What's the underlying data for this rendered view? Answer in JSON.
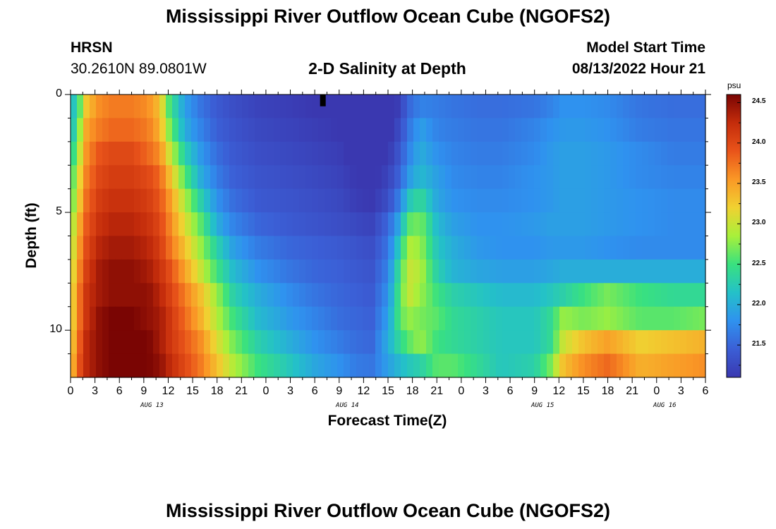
{
  "header": {
    "title_top": "Mississippi River Outflow Ocean Cube (NGOFS2)",
    "station_code": "HRSN",
    "station_coords": "30.2610N  89.0801W",
    "plot_title": "2-D Salinity at Depth",
    "model_start_label": "Model Start Time",
    "model_start_value": "08/13/2022 Hour 21",
    "title_bottom": "Mississippi River Outflow Ocean Cube (NGOFS2)"
  },
  "colors": {
    "colormap": [
      "#3a38b0",
      "#3b5fd6",
      "#2f92ef",
      "#24c1c8",
      "#39e17f",
      "#a8f03a",
      "#f0d131",
      "#fa9826",
      "#e9541a",
      "#c42c0b",
      "#7a0503"
    ],
    "axis": "#000000"
  },
  "chart_data": {
    "type": "heatmap",
    "title": "2-D Salinity at Depth",
    "xlabel": "Forecast Time(Z)",
    "ylabel": "Depth (ft)",
    "x_range_hours": [
      0,
      78
    ],
    "y_range_ft": [
      0,
      12
    ],
    "x_ticks": [
      "0",
      "3",
      "6",
      "9",
      "12",
      "15",
      "18",
      "21",
      "0",
      "3",
      "6",
      "9",
      "12",
      "15",
      "18",
      "21",
      "0",
      "3",
      "6",
      "9",
      "12",
      "15",
      "18",
      "21",
      "0",
      "3",
      "6"
    ],
    "y_ticks": [
      "0",
      "5",
      "10"
    ],
    "y_tick_values": [
      0,
      5,
      10
    ],
    "date_labels": [
      {
        "label": "AUG 13",
        "hour": 10
      },
      {
        "label": "AUG 14",
        "hour": 34
      },
      {
        "label": "AUG 15",
        "hour": 58
      },
      {
        "label": "AUG 16",
        "hour": 73
      }
    ],
    "colorbar": {
      "units": "psu",
      "min": 21.1,
      "max": 24.6,
      "ticks": [
        "21.5",
        "22.0",
        "22.5",
        "23.0",
        "23.5",
        "24.0",
        "24.5"
      ],
      "tick_values": [
        21.5,
        22.0,
        22.5,
        23.0,
        23.5,
        24.0,
        24.5
      ]
    },
    "depth_levels_ft": [
      0.5,
      1.5,
      2.5,
      3.5,
      4.5,
      5.5,
      6.5,
      7.5,
      8.5,
      9.5,
      10.5,
      11.5
    ],
    "time_keyframes_hours": [
      0,
      1,
      2,
      3.5,
      5,
      7.5,
      9.5,
      11,
      12,
      14,
      16,
      18,
      20,
      23,
      27,
      30,
      33,
      35,
      37,
      39,
      40.5,
      41.5,
      43,
      45,
      47,
      50,
      53,
      57,
      59,
      60.5,
      63,
      66,
      70,
      74,
      78
    ],
    "salinity_keyframes_by_depth": [
      [
        22.0,
        22.5,
        23.3,
        23.6,
        23.7,
        23.7,
        23.6,
        23.3,
        22.6,
        21.9,
        21.6,
        21.4,
        21.3,
        21.2,
        21.15,
        21.1,
        21.05,
        20.9,
        20.75,
        20.9,
        21.2,
        21.5,
        21.7,
        21.65,
        21.6,
        21.55,
        21.55,
        21.6,
        21.7,
        21.8,
        21.8,
        21.75,
        21.6,
        21.55,
        21.55
      ],
      [
        22.0,
        22.7,
        23.5,
        23.7,
        23.8,
        23.8,
        23.7,
        23.4,
        22.8,
        22.0,
        21.7,
        21.45,
        21.35,
        21.25,
        21.2,
        21.15,
        21.1,
        21.0,
        20.9,
        21.0,
        21.3,
        21.6,
        21.9,
        21.7,
        21.65,
        21.6,
        21.6,
        21.7,
        21.8,
        21.85,
        21.85,
        21.8,
        21.65,
        21.6,
        21.6
      ],
      [
        22.2,
        22.9,
        23.6,
        23.9,
        24.0,
        24.0,
        23.8,
        23.6,
        23.1,
        22.3,
        21.85,
        21.55,
        21.4,
        21.3,
        21.25,
        21.2,
        21.15,
        21.05,
        21.0,
        21.1,
        21.4,
        21.7,
        22.0,
        21.8,
        21.7,
        21.65,
        21.65,
        21.75,
        21.85,
        21.9,
        21.9,
        21.85,
        21.75,
        21.65,
        21.65
      ],
      [
        22.4,
        23.1,
        23.7,
        24.0,
        24.1,
        24.1,
        24.0,
        23.8,
        23.4,
        22.6,
        22.0,
        21.65,
        21.45,
        21.35,
        21.3,
        21.25,
        21.2,
        21.1,
        21.05,
        21.2,
        21.5,
        21.85,
        22.1,
        21.9,
        21.75,
        21.7,
        21.7,
        21.8,
        21.85,
        21.9,
        21.9,
        21.85,
        21.75,
        21.7,
        21.7
      ],
      [
        22.5,
        23.2,
        23.8,
        24.1,
        24.2,
        24.2,
        24.1,
        23.9,
        23.6,
        22.9,
        22.3,
        21.8,
        21.55,
        21.4,
        21.35,
        21.3,
        21.25,
        21.15,
        21.1,
        21.3,
        21.7,
        22.2,
        22.4,
        21.95,
        21.8,
        21.75,
        21.75,
        21.8,
        21.85,
        21.9,
        21.9,
        21.85,
        21.8,
        21.75,
        21.75
      ],
      [
        22.7,
        23.4,
        23.9,
        24.2,
        24.3,
        24.3,
        24.2,
        24.0,
        23.7,
        23.1,
        22.6,
        22.0,
        21.7,
        21.5,
        21.4,
        21.35,
        21.3,
        21.25,
        21.2,
        21.5,
        22.0,
        22.6,
        22.7,
        22.1,
        21.9,
        21.8,
        21.8,
        21.85,
        21.9,
        21.9,
        21.9,
        21.85,
        21.8,
        21.75,
        21.75
      ],
      [
        22.8,
        23.5,
        24.0,
        24.3,
        24.4,
        24.4,
        24.3,
        24.1,
        23.8,
        23.3,
        22.8,
        22.3,
        21.9,
        21.65,
        21.5,
        21.45,
        21.4,
        21.35,
        21.3,
        21.6,
        22.3,
        22.9,
        22.8,
        22.2,
        22.0,
        21.85,
        21.8,
        21.8,
        21.85,
        21.85,
        21.85,
        21.8,
        21.75,
        21.75,
        21.75
      ],
      [
        22.9,
        23.6,
        24.1,
        24.4,
        24.5,
        24.5,
        24.4,
        24.2,
        24.0,
        23.5,
        23.0,
        22.5,
        22.1,
        21.8,
        21.6,
        21.5,
        21.45,
        21.4,
        21.35,
        21.7,
        22.5,
        23.0,
        22.9,
        22.3,
        22.05,
        21.95,
        21.9,
        21.9,
        21.95,
        22.0,
        22.0,
        22.0,
        22.0,
        22.0,
        22.0
      ],
      [
        23.0,
        23.7,
        24.2,
        24.4,
        24.5,
        24.5,
        24.5,
        24.3,
        24.1,
        23.7,
        23.3,
        22.8,
        22.3,
        22.0,
        21.75,
        21.6,
        21.5,
        21.45,
        21.4,
        21.8,
        22.6,
        23.0,
        22.8,
        22.5,
        22.3,
        22.2,
        22.1,
        22.1,
        22.2,
        22.3,
        22.5,
        22.7,
        22.5,
        22.4,
        22.4
      ],
      [
        23.0,
        23.7,
        24.2,
        24.5,
        24.6,
        24.6,
        24.5,
        24.4,
        24.2,
        23.8,
        23.4,
        22.9,
        22.5,
        22.1,
        21.85,
        21.7,
        21.55,
        21.5,
        21.45,
        21.9,
        22.6,
        22.8,
        22.7,
        22.6,
        22.4,
        22.3,
        22.2,
        22.2,
        22.4,
        22.8,
        22.7,
        22.8,
        22.6,
        22.6,
        22.7
      ],
      [
        23.1,
        23.8,
        24.3,
        24.5,
        24.6,
        24.6,
        24.6,
        24.4,
        24.2,
        23.9,
        23.6,
        23.1,
        22.7,
        22.3,
        22.0,
        21.8,
        21.65,
        21.55,
        21.5,
        22.0,
        22.4,
        22.6,
        22.8,
        22.5,
        22.4,
        22.3,
        22.2,
        22.2,
        22.4,
        23.0,
        23.3,
        23.5,
        23.2,
        23.3,
        23.4
      ],
      [
        23.2,
        23.9,
        24.3,
        24.5,
        24.6,
        24.6,
        24.6,
        24.5,
        24.3,
        24.0,
        23.7,
        23.3,
        22.9,
        22.5,
        22.2,
        21.95,
        21.8,
        21.65,
        21.6,
        21.9,
        22.1,
        22.2,
        22.3,
        22.6,
        22.6,
        22.4,
        22.2,
        22.3,
        22.7,
        23.3,
        23.6,
        23.8,
        23.4,
        23.5,
        23.6
      ]
    ],
    "marker": {
      "hour": 31,
      "depth_ft_start": 0,
      "depth_ft_end": 0.5,
      "color": "#000000"
    }
  }
}
